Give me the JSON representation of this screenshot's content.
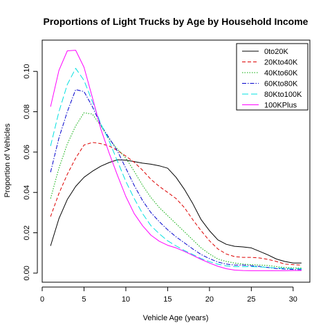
{
  "chart_data": {
    "type": "line",
    "title": "Proportions of Light Trucks by Age by Household Income",
    "xlabel": "Vehicle Age (years)",
    "ylabel": "Proportion of Vehicles",
    "xlim": [
      0,
      32
    ],
    "ylim": [
      -0.0045,
      0.1155
    ],
    "xticks": [
      0,
      5,
      10,
      15,
      20,
      25,
      30
    ],
    "yticks": [
      0.0,
      0.02,
      0.04,
      0.06,
      0.08,
      0.1
    ],
    "ytick_labels": [
      "0.00",
      "0.02",
      "0.04",
      "0.06",
      "0.08",
      "0.10"
    ],
    "legend_position": "top-right",
    "x": [
      1,
      2,
      3,
      4,
      5,
      6,
      7,
      8,
      9,
      10,
      11,
      12,
      13,
      14,
      15,
      16,
      17,
      18,
      19,
      20,
      21,
      22,
      23,
      24,
      25,
      26,
      27,
      28,
      29,
      30,
      31
    ],
    "series": [
      {
        "name": "0to20K",
        "color": "#000000",
        "dash": "",
        "values": [
          0.0135,
          0.027,
          0.0365,
          0.043,
          0.0475,
          0.0505,
          0.053,
          0.0548,
          0.0562,
          0.056,
          0.0553,
          0.0545,
          0.054,
          0.0532,
          0.052,
          0.0475,
          0.0415,
          0.0345,
          0.0265,
          0.021,
          0.0165,
          0.0143,
          0.0133,
          0.013,
          0.0125,
          0.0108,
          0.009,
          0.007,
          0.0058,
          0.005,
          0.005
        ]
      },
      {
        "name": "20Kto40K",
        "color": "#dd0000",
        "dash": "5,3",
        "values": [
          0.028,
          0.0395,
          0.049,
          0.057,
          0.0635,
          0.0648,
          0.0642,
          0.063,
          0.0608,
          0.058,
          0.055,
          0.051,
          0.0465,
          0.043,
          0.04,
          0.037,
          0.0325,
          0.0265,
          0.021,
          0.016,
          0.012,
          0.0095,
          0.0082,
          0.0078,
          0.0078,
          0.0075,
          0.0068,
          0.0058,
          0.0045,
          0.0042,
          0.004
        ]
      },
      {
        "name": "40Kto60K",
        "color": "#00aa00",
        "dash": "1.5,2",
        "values": [
          0.037,
          0.052,
          0.064,
          0.073,
          0.0795,
          0.0788,
          0.073,
          0.0665,
          0.0615,
          0.057,
          0.0505,
          0.0435,
          0.0375,
          0.0325,
          0.0285,
          0.0245,
          0.0205,
          0.0165,
          0.0125,
          0.0095,
          0.007,
          0.0058,
          0.005,
          0.0045,
          0.0042,
          0.004,
          0.0038,
          0.0032,
          0.0028,
          0.0026,
          0.0025
        ]
      },
      {
        "name": "60Kto80K",
        "color": "#0000cc",
        "dash": "6,2,1.5,2",
        "values": [
          0.05,
          0.067,
          0.08,
          0.091,
          0.09,
          0.0825,
          0.0735,
          0.067,
          0.0605,
          0.052,
          0.0435,
          0.036,
          0.03,
          0.0255,
          0.0215,
          0.018,
          0.015,
          0.012,
          0.0092,
          0.0072,
          0.0055,
          0.0045,
          0.004,
          0.004,
          0.0037,
          0.0033,
          0.0028,
          0.0023,
          0.002,
          0.0018,
          0.0017
        ]
      },
      {
        "name": "80Kto100K",
        "color": "#00e0e0",
        "dash": "9,4",
        "values": [
          0.063,
          0.08,
          0.0935,
          0.1015,
          0.0955,
          0.085,
          0.074,
          0.0655,
          0.0555,
          0.0455,
          0.037,
          0.0295,
          0.0235,
          0.0195,
          0.016,
          0.0135,
          0.0112,
          0.0092,
          0.0072,
          0.0057,
          0.0044,
          0.0036,
          0.0032,
          0.0032,
          0.0032,
          0.0031,
          0.0028,
          0.0026,
          0.0024,
          0.0023,
          0.0022
        ]
      },
      {
        "name": "100KPlus",
        "color": "#ff00ff",
        "dash": "",
        "values": [
          0.0825,
          0.1005,
          0.1102,
          0.1105,
          0.102,
          0.087,
          0.0715,
          0.0595,
          0.0485,
          0.038,
          0.0295,
          0.0235,
          0.0188,
          0.0158,
          0.0138,
          0.0125,
          0.0108,
          0.0088,
          0.0068,
          0.005,
          0.0034,
          0.0022,
          0.0015,
          0.0013,
          0.0012,
          0.0012,
          0.0012,
          0.0012,
          0.0012,
          0.0013,
          0.0013
        ]
      }
    ]
  }
}
